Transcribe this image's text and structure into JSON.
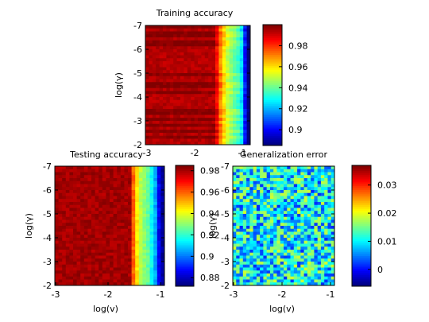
{
  "colormap": "jet",
  "chart_data": [
    {
      "type": "heatmap",
      "title": "Training accuracy",
      "xlabel": "",
      "ylabel": "log(γ)",
      "x_ticks": [
        "-3",
        "-2",
        "-1"
      ],
      "y_ticks": [
        "-7",
        "-6",
        "-5",
        "-4",
        "-3",
        "-2"
      ],
      "xlim": [
        -3,
        -1
      ],
      "ylim": [
        -7,
        -2
      ],
      "color_range": [
        0.885,
        1.0
      ],
      "colorbar_ticks": [
        "0.98",
        "0.96",
        "0.94",
        "0.92",
        "0.9"
      ],
      "columns": 30,
      "rows": 40,
      "column_profile": [
        1.0,
        1.0,
        1.0,
        1.0,
        1.0,
        1.0,
        1.0,
        1.0,
        1.0,
        1.0,
        1.0,
        1.0,
        1.0,
        1.0,
        1.0,
        1.0,
        1.0,
        1.0,
        1.0,
        1.0,
        0.99,
        0.975,
        0.965,
        0.955,
        0.95,
        0.945,
        0.94,
        0.93,
        0.905,
        0.885
      ],
      "cell_values": "rows alternate roughly between 0.993 and 0.999 across the plateau; accuracy falls off as log(v) approaches -1"
    },
    {
      "type": "heatmap",
      "title": "Testing accuracy",
      "xlabel": "log(v)",
      "ylabel": "log(γ)",
      "x_ticks": [
        "-3",
        "-2",
        "-1"
      ],
      "y_ticks": [
        "-7",
        "-6",
        "-5",
        "-4",
        "-3",
        "-2"
      ],
      "xlim": [
        -3,
        -1
      ],
      "ylim": [
        -7,
        -2
      ],
      "color_range": [
        0.872,
        0.985
      ],
      "colorbar_ticks": [
        "0.98",
        "0.96",
        "0.94",
        "0.92",
        "0.9",
        "0.88"
      ],
      "columns": 30,
      "rows": 40,
      "column_profile": [
        0.981,
        0.981,
        0.981,
        0.981,
        0.981,
        0.981,
        0.981,
        0.981,
        0.981,
        0.981,
        0.981,
        0.981,
        0.981,
        0.981,
        0.981,
        0.981,
        0.981,
        0.981,
        0.981,
        0.981,
        0.981,
        0.96,
        0.945,
        0.935,
        0.93,
        0.925,
        0.915,
        0.905,
        0.885,
        0.875
      ],
      "cell_values": "about 0.98 with small noise until log(v) is about -1.5, then decreasing toward about 0.875"
    },
    {
      "type": "heatmap",
      "title": "Generalization error",
      "xlabel": "log(v)",
      "ylabel": "log(γ)",
      "x_ticks": [
        "-3",
        "-2",
        "-1"
      ],
      "y_ticks": [
        "-7",
        "-6",
        "-5",
        "-4",
        "-3",
        "-2"
      ],
      "xlim": [
        -3,
        -1
      ],
      "ylim": [
        -7,
        -2
      ],
      "color_range": [
        -0.006,
        0.037
      ],
      "colorbar_ticks": [
        "0.03",
        "0.02",
        "0.01",
        "0"
      ],
      "columns": 30,
      "rows": 40,
      "column_profile": [
        0.01,
        0.01,
        0.01,
        0.01,
        0.01,
        0.01,
        0.01,
        0.01,
        0.01,
        0.01,
        0.01,
        0.01,
        0.01,
        0.01,
        0.01,
        0.01,
        0.01,
        0.01,
        0.01,
        0.01,
        0.01,
        0.01,
        0.01,
        0.01,
        0.01,
        0.01,
        0.01,
        0.01,
        0.01,
        0.01
      ],
      "cell_values": "noisy values around 0.01, ranging roughly from -0.005 to 0.035"
    }
  ]
}
